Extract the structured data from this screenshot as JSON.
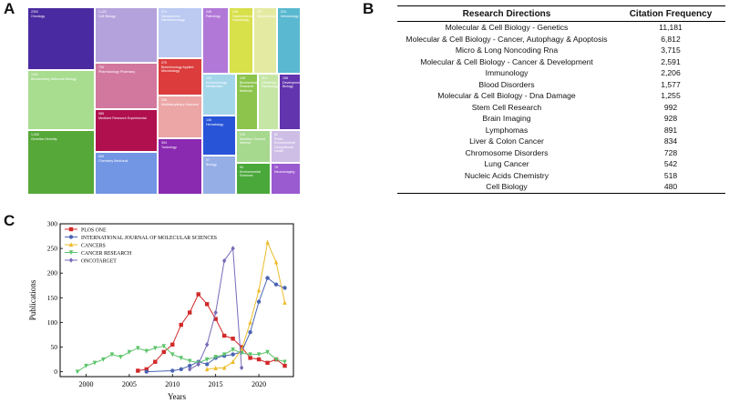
{
  "panels": {
    "a": "A",
    "b": "B",
    "c": "C"
  },
  "treemap": {
    "tiles": [
      {
        "id": "oncology",
        "count": "2302",
        "label": "Oncology",
        "color": "#4a2aa0"
      },
      {
        "id": "biochem",
        "count": "1281",
        "label": "Biochemistry Molecular Biology",
        "color": "#a8dc8f"
      },
      {
        "id": "genetics",
        "count": "1,000",
        "label": "Genetics Heredity",
        "color": "#56a838"
      },
      {
        "id": "cellbio",
        "count": "1,122",
        "label": "Cell Biology",
        "color": "#b4a2dc"
      },
      {
        "id": "pharma",
        "count": "734",
        "label": "Pharmacology Pharmacy",
        "color": "#d2789e"
      },
      {
        "id": "medres",
        "count": "585",
        "label": "Medicine Research Experimental",
        "color": "#b0104e"
      },
      {
        "id": "chem",
        "count": "605",
        "label": "Chemistry Medicinal",
        "color": "#7296e4"
      },
      {
        "id": "nano",
        "count": "374",
        "label": "Nanoscience Nanotechnology",
        "color": "#bccaf2"
      },
      {
        "id": "biotech",
        "count": "375",
        "label": "Biotechnology Applied Microbiology",
        "color": "#dc3c3c"
      },
      {
        "id": "multi",
        "count": "396",
        "label": "Multidisciplinary Sciences",
        "color": "#eca6a6"
      },
      {
        "id": "toxic",
        "count": "394",
        "label": "Toxicology",
        "color": "#8a2ab0"
      },
      {
        "id": "pathology",
        "count": "246",
        "label": "Pathology",
        "color": "#b278d8"
      },
      {
        "id": "gastro",
        "count": "248",
        "label": "Gastroenterology Hepatology",
        "color": "#d8e04a"
      },
      {
        "id": "neuro",
        "count": "237",
        "label": "Neurosciences",
        "color": "#e4eaa2"
      },
      {
        "id": "immuno",
        "count": "224",
        "label": "Immunology",
        "color": "#5ab8d0"
      },
      {
        "id": "endo",
        "count": "190",
        "label": "Endocrinology Metabolism",
        "color": "#a4d6ea"
      },
      {
        "id": "biochmeth",
        "count": "128",
        "label": "Biochemical Research Methods",
        "color": "#8cc44c"
      },
      {
        "id": "obstet",
        "count": "114",
        "label": "Obstetrics Gynecology",
        "color": "#c6e6a6"
      },
      {
        "id": "devbio",
        "count": "158",
        "label": "Developmental Biology",
        "color": "#6234ae"
      },
      {
        "id": "hemat",
        "count": "108",
        "label": "Hematology",
        "color": "#2854d8"
      },
      {
        "id": "biology",
        "count": "97",
        "label": "Biology",
        "color": "#96aee6"
      },
      {
        "id": "medgen",
        "count": "105",
        "label": "Medicine General Internal",
        "color": "#a6d88e"
      },
      {
        "id": "envsci",
        "count": "94",
        "label": "Environmental Sciences",
        "color": "#4aa83a"
      },
      {
        "id": "pubhealth",
        "count": "82",
        "label": "Public Environmental Occupational Health",
        "color": "#cebee6"
      },
      {
        "id": "neuroimg",
        "count": "78",
        "label": "Neuroimaging",
        "color": "#9a5ad0"
      }
    ]
  },
  "table": {
    "headers": {
      "direction": "Research Directions",
      "citation": "Citation Frequency"
    },
    "rows": [
      {
        "direction": "Molecular & Cell Biology - Genetics",
        "citation": "11,181"
      },
      {
        "direction": "Molecular & Cell Biology - Cancer, Autophagy & Apoptosis",
        "citation": "6,812"
      },
      {
        "direction": "Micro & Long Noncoding Rna",
        "citation": "3,715"
      },
      {
        "direction": "Molecular & Cell Biology - Cancer & Development",
        "citation": "2,591"
      },
      {
        "direction": "Immunology",
        "citation": "2,206"
      },
      {
        "direction": "Blood Disorders",
        "citation": "1,577"
      },
      {
        "direction": "Molecular & Cell Biology - Dna Damage",
        "citation": "1,255"
      },
      {
        "direction": "Stem Cell Research",
        "citation": "992"
      },
      {
        "direction": "Brain Imaging",
        "citation": "928"
      },
      {
        "direction": "Lymphomas",
        "citation": "891"
      },
      {
        "direction": "Liver & Colon Cancer",
        "citation": "834"
      },
      {
        "direction": "Chromosome Disorders",
        "citation": "728"
      },
      {
        "direction": "Lung Cancer",
        "citation": "542"
      },
      {
        "direction": "Nucleic Acids Chemistry",
        "citation": "518"
      },
      {
        "direction": "Cell Biology",
        "citation": "480"
      }
    ]
  },
  "chart_data": {
    "type": "line",
    "xlabel": "Years",
    "ylabel": "Publications",
    "xlim": [
      1997,
      2024
    ],
    "ylim": [
      -10,
      300
    ],
    "xticks": [
      2000,
      2005,
      2010,
      2015,
      2020
    ],
    "yticks": [
      0,
      50,
      100,
      150,
      200,
      250,
      300
    ],
    "legend_position": "top-left",
    "series": [
      {
        "name": "PLOS ONE",
        "color": "#d22828",
        "marker": "square",
        "x": [
          2006,
          2007,
          2008,
          2009,
          2010,
          2011,
          2012,
          2013,
          2014,
          2015,
          2016,
          2017,
          2018,
          2019,
          2020,
          2021,
          2022,
          2023
        ],
        "y": [
          2,
          5,
          20,
          40,
          55,
          95,
          120,
          157,
          137,
          107,
          73,
          67,
          50,
          28,
          25,
          18,
          25,
          12
        ]
      },
      {
        "name": "INTERNATIONAL JOURNAL OF MOLECULAR SCIENCES",
        "color": "#4a64b4",
        "marker": "circle",
        "x": [
          2007,
          2010,
          2011,
          2012,
          2013,
          2014,
          2015,
          2016,
          2017,
          2018,
          2019,
          2020,
          2021,
          2022,
          2023
        ],
        "y": [
          0,
          2,
          5,
          12,
          20,
          15,
          28,
          32,
          35,
          40,
          80,
          142,
          190,
          177,
          170
        ]
      },
      {
        "name": "CANCERS",
        "color": "#ecbc2a",
        "marker": "triangle",
        "x": [
          2014,
          2015,
          2016,
          2017,
          2018,
          2019,
          2020,
          2021,
          2022,
          2023
        ],
        "y": [
          5,
          7,
          8,
          20,
          45,
          100,
          165,
          262,
          222,
          140
        ]
      },
      {
        "name": "CANCER RESEARCH",
        "color": "#5cc46a",
        "marker": "triangle-down",
        "x": [
          1999,
          2000,
          2001,
          2002,
          2003,
          2004,
          2005,
          2006,
          2007,
          2008,
          2009,
          2010,
          2011,
          2012,
          2013,
          2014,
          2015,
          2016,
          2017,
          2018,
          2019,
          2020,
          2021,
          2022,
          2023
        ],
        "y": [
          0,
          12,
          18,
          25,
          35,
          30,
          40,
          48,
          42,
          48,
          52,
          35,
          28,
          22,
          18,
          25,
          30,
          35,
          45,
          38,
          35,
          35,
          40,
          25,
          20
        ]
      },
      {
        "name": "ONCOTARGET",
        "color": "#7a6ab8",
        "marker": "diamond",
        "x": [
          2012,
          2013,
          2014,
          2015,
          2016,
          2017,
          2018
        ],
        "y": [
          5,
          15,
          55,
          120,
          225,
          250,
          8
        ]
      }
    ]
  }
}
